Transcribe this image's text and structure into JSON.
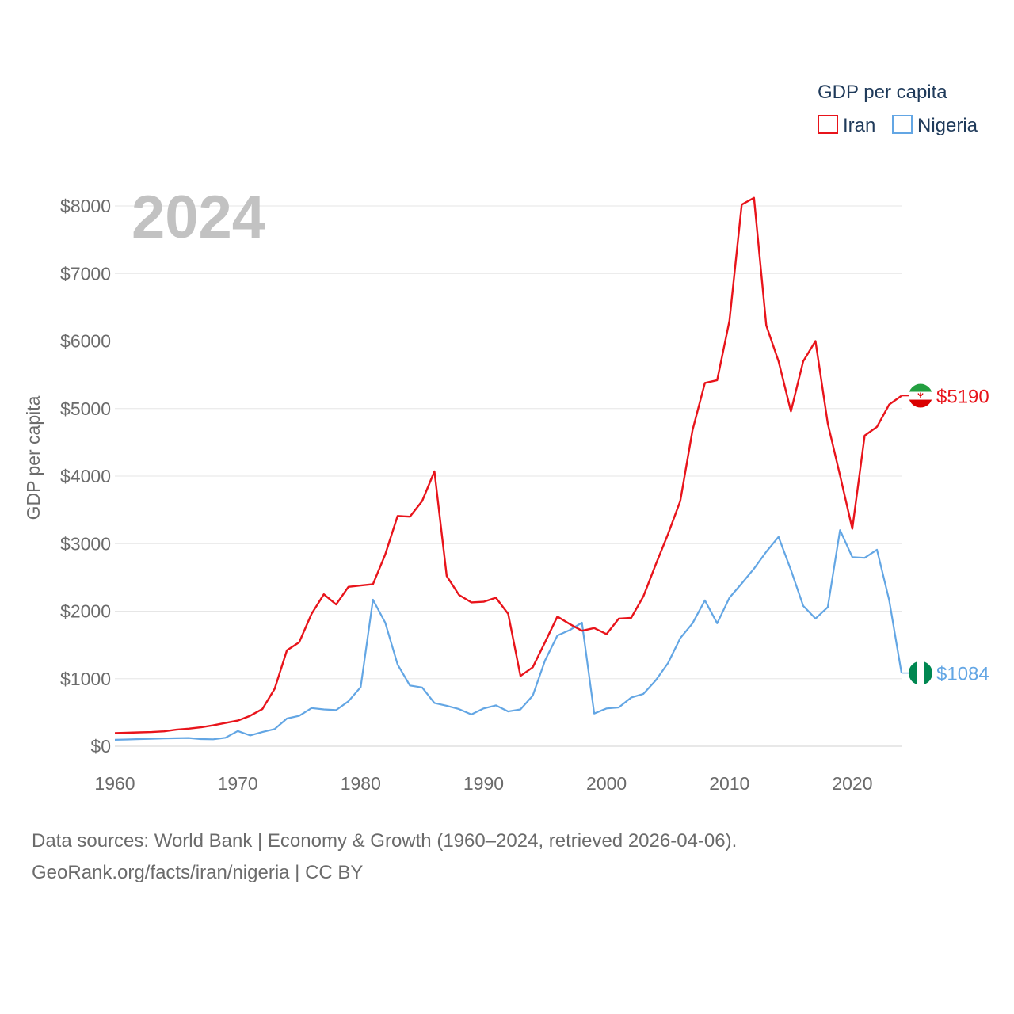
{
  "chart_data": {
    "type": "line",
    "title": "GDP per capita",
    "legend_title": "GDP per capita",
    "legend_position": "top-right",
    "ylabel": "GDP per capita",
    "xlabel": "",
    "year_label": "2024",
    "xlim": [
      1960,
      2024
    ],
    "ylim": [
      0,
      8000
    ],
    "grid": true,
    "x_ticks": [
      1960,
      1970,
      1980,
      1990,
      2000,
      2010,
      2020
    ],
    "x_tick_labels": [
      "1960",
      "1970",
      "1980",
      "1990",
      "2000",
      "2010",
      "2020"
    ],
    "y_ticks": [
      0,
      1000,
      2000,
      3000,
      4000,
      5000,
      6000,
      7000,
      8000
    ],
    "y_tick_labels": [
      "$0",
      "$1000",
      "$2000",
      "$3000",
      "$4000",
      "$5000",
      "$6000",
      "$7000",
      "$8000"
    ],
    "x": [
      1960,
      1961,
      1962,
      1963,
      1964,
      1965,
      1966,
      1967,
      1968,
      1969,
      1970,
      1971,
      1972,
      1973,
      1974,
      1975,
      1976,
      1977,
      1978,
      1979,
      1980,
      1981,
      1982,
      1983,
      1984,
      1985,
      1986,
      1987,
      1988,
      1989,
      1990,
      1991,
      1992,
      1993,
      1994,
      1995,
      1996,
      1997,
      1998,
      1999,
      2000,
      2001,
      2002,
      2003,
      2004,
      2005,
      2006,
      2007,
      2008,
      2009,
      2010,
      2011,
      2012,
      2013,
      2014,
      2015,
      2016,
      2017,
      2018,
      2019,
      2020,
      2021,
      2022,
      2023,
      2024
    ],
    "series": [
      {
        "name": "Iran",
        "color": "#e8141b",
        "end_label": "$5190",
        "flag": "iran-flag-icon",
        "values": [
          195,
          200,
          205,
          210,
          220,
          245,
          260,
          280,
          310,
          345,
          380,
          450,
          550,
          850,
          1420,
          1540,
          1960,
          2250,
          2100,
          2360,
          2380,
          2400,
          2840,
          3410,
          3400,
          3630,
          4070,
          2520,
          2240,
          2130,
          2140,
          2200,
          1960,
          1040,
          1170,
          1540,
          1920,
          1810,
          1710,
          1750,
          1660,
          1890,
          1900,
          2220,
          2690,
          3140,
          3630,
          4680,
          5380,
          5420,
          6300,
          8020,
          8120,
          6230,
          5700,
          4960,
          5700,
          6000,
          4780,
          4010,
          3220,
          4600,
          4730,
          5060,
          5190
        ]
      },
      {
        "name": "Nigeria",
        "color": "#63a6e4",
        "end_label": "$1084",
        "flag": "nigeria-flag-icon",
        "values": [
          95,
          100,
          105,
          110,
          115,
          118,
          122,
          105,
          102,
          125,
          225,
          160,
          210,
          255,
          410,
          450,
          565,
          545,
          535,
          665,
          875,
          2170,
          1830,
          1210,
          900,
          870,
          640,
          600,
          550,
          470,
          560,
          605,
          515,
          545,
          750,
          1270,
          1640,
          1720,
          1830,
          485,
          560,
          575,
          720,
          775,
          975,
          1230,
          1600,
          1820,
          2160,
          1820,
          2200,
          2410,
          2630,
          2880,
          3100,
          2610,
          2080,
          1890,
          2060,
          3200,
          2800,
          2790,
          2910,
          2160,
          1084
        ]
      }
    ]
  },
  "footer": {
    "line1": "Data sources: World Bank | Economy & Growth (1960–2024, retrieved 2026-04-06).",
    "line2": "GeoRank.org/facts/iran/nigeria | CC BY"
  }
}
